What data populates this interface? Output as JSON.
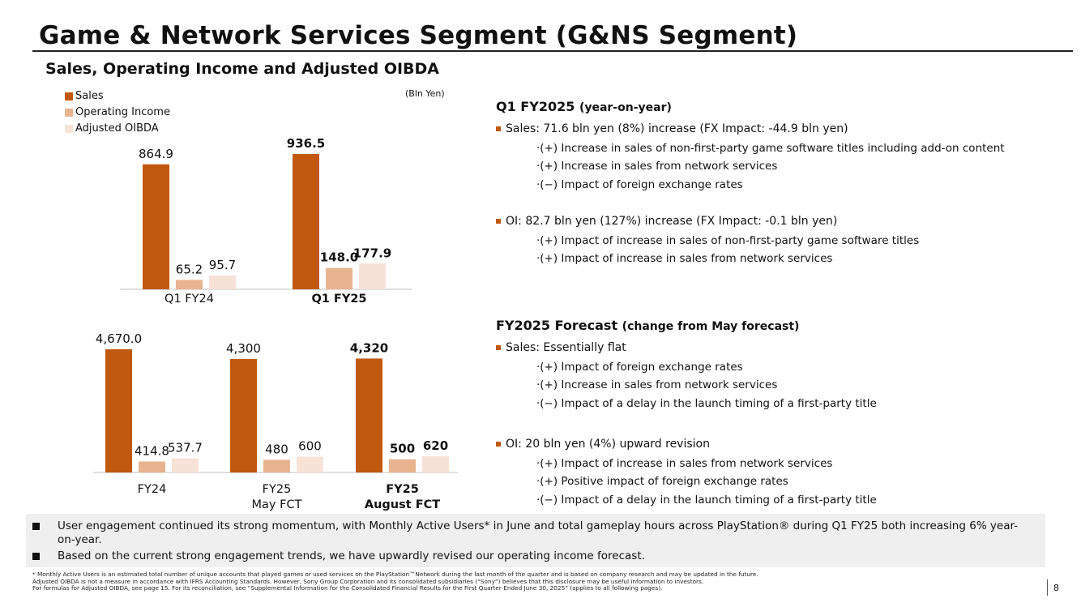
{
  "title": "Game & Network Services Segment (G&NS Segment)",
  "subtitle": "Sales, Operating Income and Adjusted OIBDA",
  "colors": {
    "sales": "#c0580d",
    "operating_income": "#e8b48f",
    "adjusted_oibda": "#f7e2d7",
    "accent": "#c0580d"
  },
  "legend": {
    "sales": "Sales",
    "operating_income": "Operating Income",
    "adjusted_oibda": "Adjusted OIBDA"
  },
  "unit": "(Bln Yen)",
  "chart_data": [
    {
      "type": "bar",
      "categories": [
        "Q1 FY24",
        "Q1 FY25"
      ],
      "series": [
        {
          "name": "Sales",
          "values": [
            864.9,
            936.5
          ],
          "labels": [
            "864.9",
            "936.5"
          ]
        },
        {
          "name": "Operating Income",
          "values": [
            65.2,
            148.0
          ],
          "labels": [
            "65.2",
            "148.0"
          ]
        },
        {
          "name": "Adjusted OIBDA",
          "values": [
            95.7,
            177.9
          ],
          "labels": [
            "95.7",
            "177.9"
          ]
        }
      ],
      "bold_categories": [
        1
      ]
    },
    {
      "type": "bar",
      "categories": [
        "FY24",
        "FY25\nMay FCT",
        "FY25\nAugust FCT"
      ],
      "series": [
        {
          "name": "Sales",
          "values": [
            4670.0,
            4300,
            4320
          ],
          "labels": [
            "4,670.0",
            "4,300",
            "4,320"
          ]
        },
        {
          "name": "Operating Income",
          "values": [
            414.8,
            480,
            500
          ],
          "labels": [
            "414.8",
            "480",
            "500"
          ]
        },
        {
          "name": "Adjusted OIBDA",
          "values": [
            537.7,
            600,
            620
          ],
          "labels": [
            "537.7",
            "600",
            "620"
          ]
        }
      ],
      "bold_categories": [
        2
      ]
    }
  ],
  "q1": {
    "heading": "Q1 FY2025",
    "heading_note": "(year-on-year)",
    "sales_bullet": "Sales: 71.6 bln yen (8%) increase (FX Impact: -44.9 bln yen)",
    "sales_points": [
      "·(+) Increase in sales of non-first-party game software titles including add-on content",
      "·(+) Increase in sales from network services",
      "·(−) Impact of foreign exchange rates"
    ],
    "oi_bullet": "OI: 82.7 bln yen (127%) increase (FX Impact: -0.1 bln yen)",
    "oi_points": [
      "·(+) Impact of increase in sales of non-first-party game software titles",
      "·(+) Impact of increase in sales from network services"
    ]
  },
  "forecast": {
    "heading": "FY2025 Forecast",
    "heading_note": "(change from May forecast)",
    "sales_bullet": "Sales: Essentially flat",
    "sales_points": [
      "·(+) Impact of foreign exchange rates",
      "·(+) Increase in sales from network services",
      "·(−) Impact of a delay in the launch timing of a first-party title"
    ],
    "oi_bullet": "OI: 20 bln yen (4%) upward revision",
    "oi_points": [
      "·(+) Impact of increase in sales from network services",
      "·(+) Positive impact of foreign exchange rates",
      "·(−) Impact of a delay in the launch timing of a first-party title"
    ]
  },
  "bottom_bullets": [
    "User engagement continued its strong momentum, with Monthly Active Users* in June and total gameplay hours across PlayStation® during Q1 FY25 both increasing 6% year-on-year.",
    "Based on the current strong engagement trends, we have upwardly revised our operating income forecast."
  ],
  "footnotes": [
    "* Monthly Active Users is an estimated total number of unique accounts that played games or used services on the PlayStation™Network during the last month of the quarter and is based on company research and may be updated in the future.",
    "Adjusted OIBDA is not a measure in accordance with IFRS Accounting Standards. However, Sony Group Corporation and its consolidated subsidiaries (“Sony”) believes that this disclosure may be useful information to investors.",
    "For formulas for Adjusted OIBDA, see page 15. For its reconciliation, see “Supplemental Information for the Consolidated Financial Results for the First Quarter Ended June 30, 2025” (applies to all following pages)."
  ],
  "page_number": "8"
}
